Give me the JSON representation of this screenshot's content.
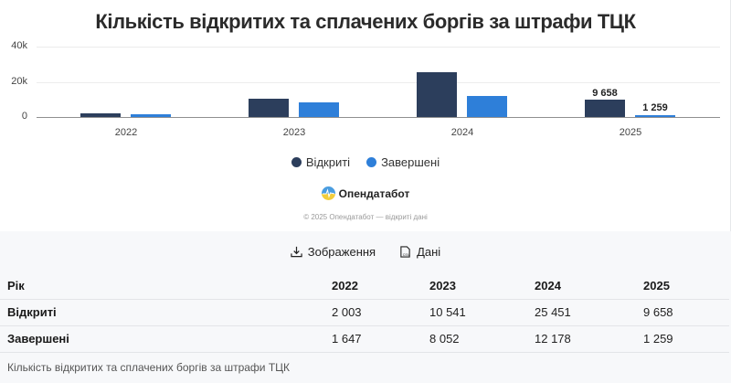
{
  "chart_data": {
    "type": "bar",
    "title": "Кількість відкритих та сплачених боргів за штрафи ТЦК",
    "categories": [
      "2022",
      "2023",
      "2024",
      "2025"
    ],
    "series": [
      {
        "name": "Відкриті",
        "color": "#2c3e5c",
        "values": [
          2003,
          10541,
          25451,
          9658
        ]
      },
      {
        "name": "Завершені",
        "color": "#2e7fd9",
        "values": [
          1647,
          8052,
          12178,
          1259
        ]
      }
    ],
    "xlabel": "",
    "ylabel": "",
    "ylim": [
      0,
      40000
    ],
    "yticks": [
      "0",
      "20k",
      "40k"
    ],
    "data_labels": {
      "2025": [
        "9 658",
        "1 259"
      ]
    },
    "grid": true,
    "legend_position": "bottom"
  },
  "legend": {
    "open_label": "Відкриті",
    "closed_label": "Завершені"
  },
  "brand": {
    "name": "Опендатабот",
    "credit": "© 2025 Опендатабот — відкриті дані"
  },
  "actions": {
    "image_label": "Зображення",
    "data_label": "Дані"
  },
  "table": {
    "header": [
      "Рік",
      "2022",
      "2023",
      "2024",
      "2025"
    ],
    "rows": [
      [
        "Відкриті",
        "2 003",
        "10 541",
        "25 451",
        "9 658"
      ],
      [
        "Завершені",
        "1 647",
        "8 052",
        "12 178",
        "1 259"
      ]
    ],
    "caption": "Кількість відкритих та сплачених боргів за штрафи ТЦК"
  }
}
